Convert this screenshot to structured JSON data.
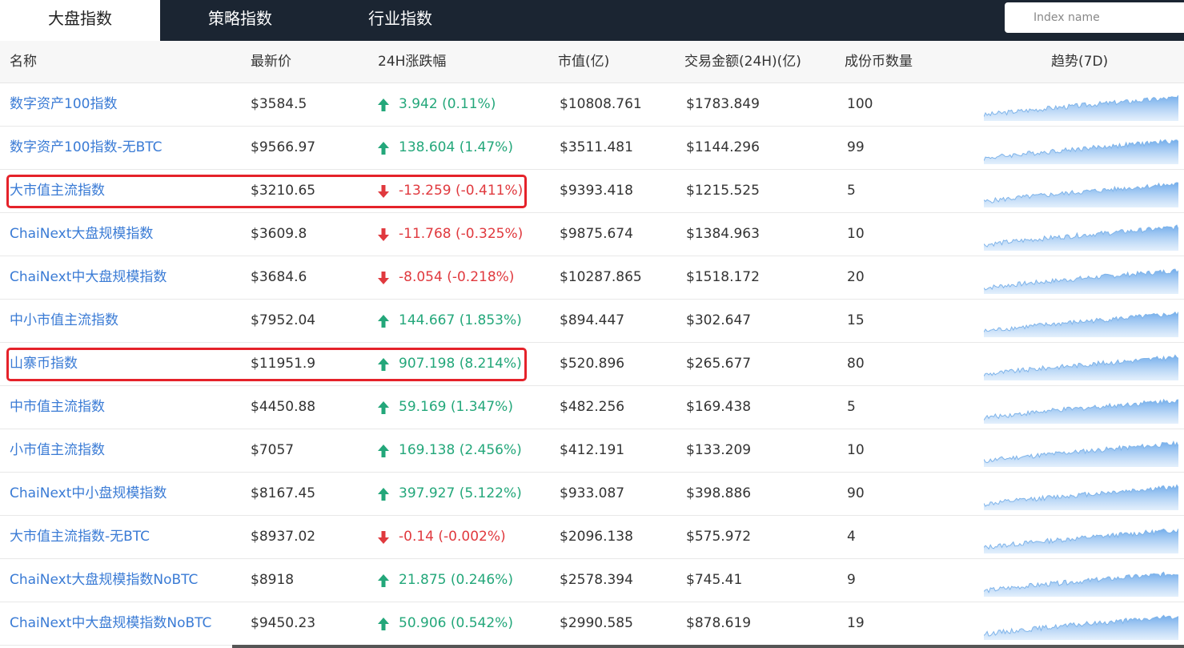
{
  "tabs": [
    {
      "label": "大盘指数",
      "active": true
    },
    {
      "label": "策略指数",
      "active": false
    },
    {
      "label": "行业指数",
      "active": false
    }
  ],
  "search": {
    "placeholder": "Index name",
    "value": ""
  },
  "columns": [
    "名称",
    "最新价",
    "24H涨跌幅",
    "市值(亿)",
    "交易金额(24H)(亿)",
    "成份币数量",
    "趋势(7D)"
  ],
  "colors": {
    "up": "#23a77a",
    "down": "#e0393e",
    "link": "#3a7bd5",
    "highlight": "#e5222a",
    "spark_line": "#7fb4ea"
  },
  "rows": [
    {
      "name": "数字资产100指数",
      "price": "$3584.5",
      "direction": "up",
      "change": "3.942 (0.11%)",
      "market_cap": "$10808.761",
      "volume": "$1783.849",
      "constituents": "100",
      "highlighted": false
    },
    {
      "name": "数字资产100指数-无BTC",
      "price": "$9566.97",
      "direction": "up",
      "change": "138.604 (1.47%)",
      "market_cap": "$3511.481",
      "volume": "$1144.296",
      "constituents": "99",
      "highlighted": false
    },
    {
      "name": "大市值主流指数",
      "price": "$3210.65",
      "direction": "down",
      "change": "-13.259 (-0.411%)",
      "market_cap": "$9393.418",
      "volume": "$1215.525",
      "constituents": "5",
      "highlighted": true
    },
    {
      "name": "ChaiNext大盘规模指数",
      "price": "$3609.8",
      "direction": "down",
      "change": "-11.768 (-0.325%)",
      "market_cap": "$9875.674",
      "volume": "$1384.963",
      "constituents": "10",
      "highlighted": false
    },
    {
      "name": "ChaiNext中大盘规模指数",
      "price": "$3684.6",
      "direction": "down",
      "change": "-8.054 (-0.218%)",
      "market_cap": "$10287.865",
      "volume": "$1518.172",
      "constituents": "20",
      "highlighted": false
    },
    {
      "name": "中小市值主流指数",
      "price": "$7952.04",
      "direction": "up",
      "change": "144.667 (1.853%)",
      "market_cap": "$894.447",
      "volume": "$302.647",
      "constituents": "15",
      "highlighted": false
    },
    {
      "name": "山寨币指数",
      "price": "$11951.9",
      "direction": "up",
      "change": "907.198 (8.214%)",
      "market_cap": "$520.896",
      "volume": "$265.677",
      "constituents": "80",
      "highlighted": true
    },
    {
      "name": "中市值主流指数",
      "price": "$4450.88",
      "direction": "up",
      "change": "59.169 (1.347%)",
      "market_cap": "$482.256",
      "volume": "$169.438",
      "constituents": "5",
      "highlighted": false
    },
    {
      "name": "小市值主流指数",
      "price": "$7057",
      "direction": "up",
      "change": "169.138 (2.456%)",
      "market_cap": "$412.191",
      "volume": "$133.209",
      "constituents": "10",
      "highlighted": false
    },
    {
      "name": "ChaiNext中小盘规模指数",
      "price": "$8167.45",
      "direction": "up",
      "change": "397.927 (5.122%)",
      "market_cap": "$933.087",
      "volume": "$398.886",
      "constituents": "90",
      "highlighted": false
    },
    {
      "name": "大市值主流指数-无BTC",
      "price": "$8937.02",
      "direction": "down",
      "change": "-0.14 (-0.002%)",
      "market_cap": "$2096.138",
      "volume": "$575.972",
      "constituents": "4",
      "highlighted": false
    },
    {
      "name": "ChaiNext大盘规模指数NoBTC",
      "price": "$8918",
      "direction": "up",
      "change": "21.875 (0.246%)",
      "market_cap": "$2578.394",
      "volume": "$745.41",
      "constituents": "9",
      "highlighted": false
    },
    {
      "name": "ChaiNext中大盘规模指数NoBTC",
      "price": "$9450.23",
      "direction": "up",
      "change": "50.906 (0.542%)",
      "market_cap": "$2990.585",
      "volume": "$878.619",
      "constituents": "19",
      "highlighted": false
    }
  ]
}
